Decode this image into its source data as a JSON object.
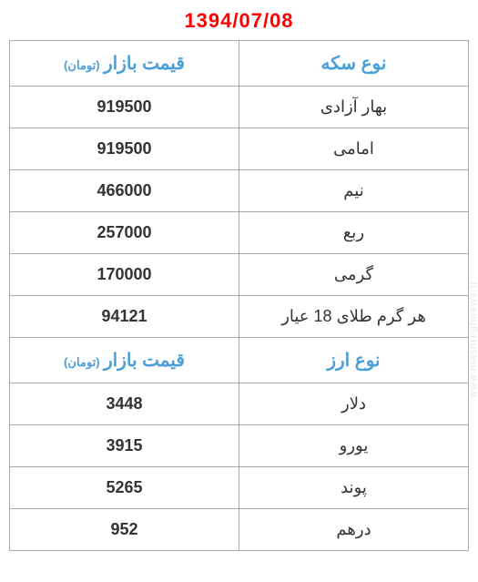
{
  "date": "1394/07/08",
  "watermark": "www.mashreghnews.ir",
  "coin_section": {
    "header_price": "قیمت بازار",
    "header_price_unit": "(تومان)",
    "header_type": "نوع سکه",
    "rows": [
      {
        "name": "بهار آزادی",
        "price": "919500"
      },
      {
        "name": "امامی",
        "price": "919500"
      },
      {
        "name": "نیم",
        "price": "466000"
      },
      {
        "name": "ربع",
        "price": "257000"
      },
      {
        "name": "گرمی",
        "price": "170000"
      },
      {
        "name": "هر گرم طلای 18 عیار",
        "price": "94121"
      }
    ]
  },
  "currency_section": {
    "header_price": "قیمت بازار",
    "header_price_unit": "(تومان)",
    "header_type": "نوع ارز",
    "rows": [
      {
        "name": "دلار",
        "price": "3448"
      },
      {
        "name": "یورو",
        "price": "3915"
      },
      {
        "name": "پوند",
        "price": "5265"
      },
      {
        "name": "درهم",
        "price": "952"
      }
    ]
  },
  "styles": {
    "date_color": "#ff0000",
    "header_color": "#4a9fd8",
    "border_color": "#aaaaaa",
    "text_color": "#333333",
    "background_color": "#ffffff"
  }
}
